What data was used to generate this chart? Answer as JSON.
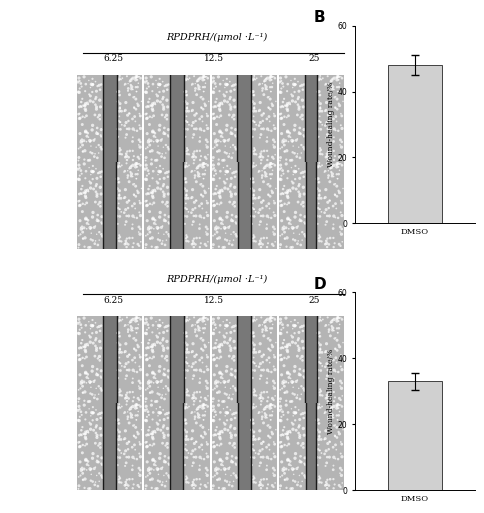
{
  "panel_B": {
    "bar_value": 48,
    "error": 3,
    "bar_color": "#d0d0d0",
    "xlabel": "DMSO",
    "ylabel": "Wound-healing rate/%",
    "ylim": [
      0,
      60
    ],
    "yticks": [
      0,
      20,
      40,
      60
    ],
    "label": "B"
  },
  "panel_D": {
    "bar_value": 33,
    "error": 2.5,
    "bar_color": "#d0d0d0",
    "xlabel": "DMSO",
    "ylabel": "Wound-healing rate/%",
    "ylim": [
      0,
      60
    ],
    "yticks": [
      0,
      20,
      40,
      60
    ],
    "label": "D"
  },
  "top_label": "RPDPRH/(μmol ·L⁻¹)",
  "sub_labels": [
    "6.25",
    "12.5",
    "25"
  ],
  "background_color": "#ffffff",
  "cell_bg_gray": "#a0a0a0",
  "cell_texture_light": "#c8c8c8",
  "scratch_bg": "#808080",
  "scratch_line_color": "#202020"
}
